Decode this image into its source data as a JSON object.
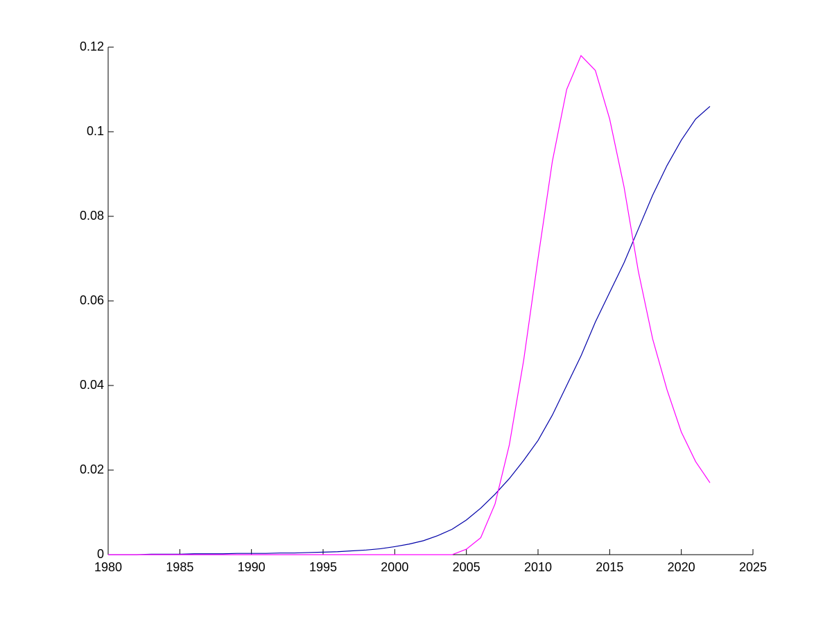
{
  "chart_data": {
    "type": "line",
    "x": [
      1980,
      1981,
      1982,
      1983,
      1984,
      1985,
      1986,
      1987,
      1988,
      1989,
      1990,
      1991,
      1992,
      1993,
      1994,
      1995,
      1996,
      1997,
      1998,
      1999,
      2000,
      2001,
      2002,
      2003,
      2004,
      2005,
      2006,
      2007,
      2008,
      2009,
      2010,
      2011,
      2012,
      2013,
      2014,
      2015,
      2016,
      2017,
      2018,
      2019,
      2020,
      2021,
      2022
    ],
    "series": [
      {
        "color": "#0000a8",
        "values": [
          0,
          0,
          0,
          0.0001,
          0.0001,
          0.0001,
          0.0002,
          0.0002,
          0.0002,
          0.0003,
          0.0003,
          0.0003,
          0.0004,
          0.0004,
          0.0005,
          0.0006,
          0.0007,
          0.0009,
          0.0011,
          0.0014,
          0.0019,
          0.0025,
          0.0033,
          0.0045,
          0.006,
          0.0082,
          0.011,
          0.0143,
          0.018,
          0.0223,
          0.027,
          0.033,
          0.04,
          0.047,
          0.055,
          0.062,
          0.069,
          0.077,
          0.085,
          0.092,
          0.098,
          0.103,
          0.106
        ]
      },
      {
        "color": "#ff00ff",
        "values": [
          0,
          0,
          0,
          0,
          0,
          0,
          0,
          0,
          0,
          0,
          0,
          0,
          0,
          0,
          0,
          0,
          0,
          0,
          0,
          0,
          0,
          0,
          0,
          0,
          0,
          0.0013,
          0.004,
          0.012,
          0.026,
          0.046,
          0.07,
          0.093,
          0.11,
          0.118,
          0.1145,
          0.103,
          0.087,
          0.067,
          0.051,
          0.039,
          0.029,
          0.022,
          0.017
        ]
      }
    ],
    "xlim": [
      1980,
      2025
    ],
    "xticks": [
      1980,
      1985,
      1990,
      1995,
      2000,
      2005,
      2010,
      2015,
      2020,
      2025
    ],
    "ylim": [
      0,
      0.12
    ],
    "yticks": [
      0,
      0.02,
      0.04,
      0.06,
      0.08,
      0.1,
      0.12
    ],
    "grid": false
  }
}
